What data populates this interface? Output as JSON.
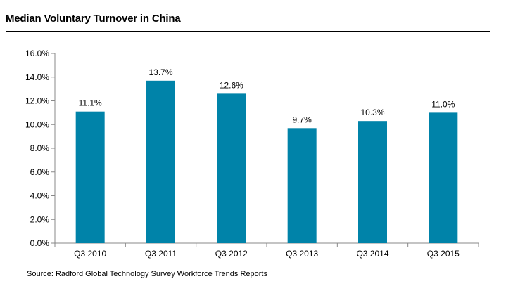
{
  "chart_data": {
    "type": "bar",
    "title": "Median Voluntary Turnover in China",
    "categories": [
      "Q3 2010",
      "Q3 2011",
      "Q3 2012",
      "Q3 2013",
      "Q3 2014",
      "Q3 2015"
    ],
    "values": [
      11.1,
      13.7,
      12.6,
      9.7,
      10.3,
      11.0
    ],
    "value_labels": [
      "11.1%",
      "13.7%",
      "12.6%",
      "9.7%",
      "10.3%",
      "11.0%"
    ],
    "ylim": [
      0,
      16
    ],
    "y_ticks": [
      0,
      2,
      4,
      6,
      8,
      10,
      12,
      14,
      16
    ],
    "y_tick_labels": [
      "0.0%",
      "2.0%",
      "4.0%",
      "6.0%",
      "8.0%",
      "10.0%",
      "12.0%",
      "14.0%",
      "16.0%"
    ],
    "xlabel": "",
    "ylabel": "",
    "grid": false,
    "legend": "none",
    "bar_color": "#0083A9",
    "axis_color": "#888888"
  },
  "source": "Source: Radford Global Technology Survey Workforce Trends Reports"
}
